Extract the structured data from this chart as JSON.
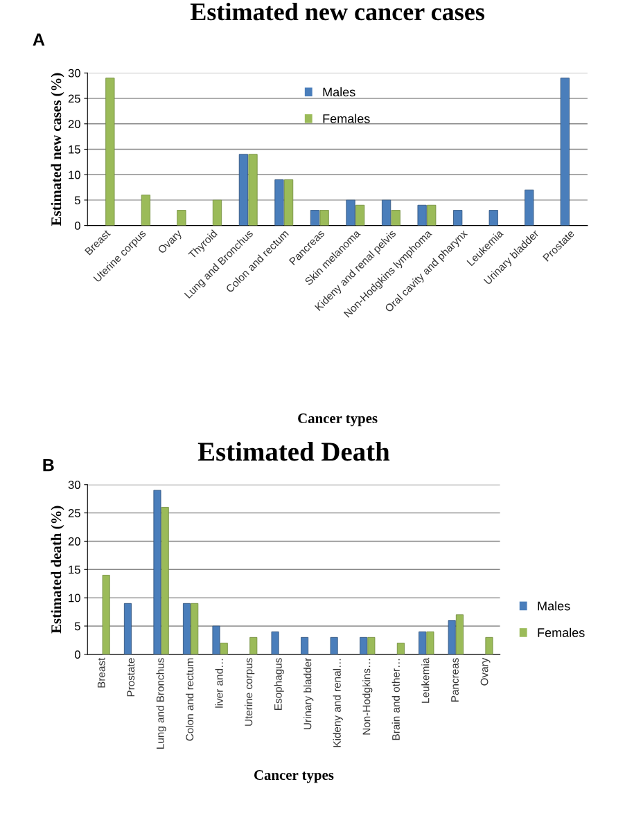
{
  "chart_data": [
    {
      "type": "bar",
      "title": "Estimated new cancer cases",
      "xlabel": "Cancer types",
      "ylabel": "Estimated new cases (%)",
      "annotations": [
        "A"
      ],
      "categories": [
        "Breast",
        "Uterine corpus",
        "Ovary",
        "Thyroid",
        "Lung and Bronchus",
        "Colon and rectum",
        "Pancreas",
        "Skin melanoma",
        "Kideny and renal pelvis",
        "Non-Hodgkins lymphoma",
        "Oral cavity and pharynx",
        "Leukemia",
        "Urinary bladder",
        "Prostate"
      ],
      "series": [
        {
          "name": "Males",
          "color": "#4a7ebb",
          "values": [
            null,
            null,
            null,
            null,
            14,
            9,
            3,
            5,
            5,
            4,
            3,
            3,
            7,
            29
          ]
        },
        {
          "name": "Females",
          "color": "#9bbb59",
          "values": [
            29,
            6,
            3,
            5,
            14,
            9,
            3,
            4,
            3,
            4,
            null,
            null,
            null,
            null
          ]
        }
      ],
      "ylim": [
        0,
        30
      ],
      "yticks": [
        0,
        5,
        10,
        15,
        20,
        25,
        30
      ],
      "grid": "y",
      "legend": "top"
    },
    {
      "type": "bar",
      "title": "Estimated Death",
      "xlabel": "Cancer types",
      "ylabel": "Estimated death (%)",
      "annotations": [
        "B"
      ],
      "categories": [
        "Breast",
        "Prostate",
        "Lung and Bronchus",
        "Colon and rectum",
        "liver and…",
        "Uterine corpus",
        "Esophagus",
        "Urinary bladder",
        "Kideny and renal…",
        "Non-Hodgkins…",
        "Brain and other…",
        "Leukemia",
        "Pancreas",
        "Ovary"
      ],
      "series": [
        {
          "name": "Males",
          "color": "#4a7ebb",
          "values": [
            null,
            9,
            29,
            9,
            5,
            null,
            4,
            3,
            3,
            3,
            null,
            4,
            6,
            null
          ]
        },
        {
          "name": "Females",
          "color": "#9bbb59",
          "values": [
            14,
            null,
            26,
            9,
            2,
            3,
            null,
            null,
            null,
            3,
            2,
            4,
            7,
            3
          ]
        }
      ],
      "ylim": [
        0,
        30
      ],
      "yticks": [
        0,
        5,
        10,
        15,
        20,
        25,
        30
      ],
      "grid": "y",
      "legend": "right"
    }
  ]
}
